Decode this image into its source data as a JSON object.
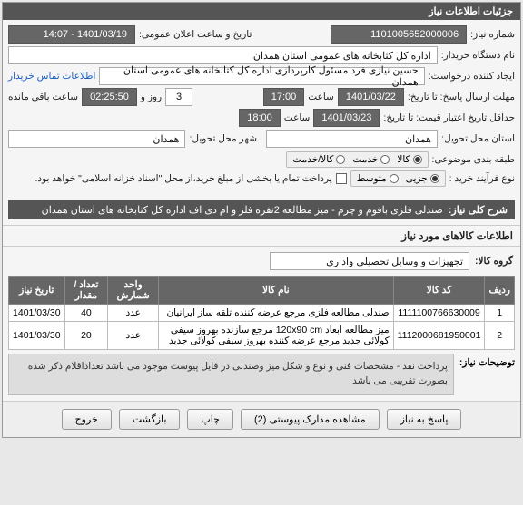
{
  "panel_title": "جزئیات اطلاعات نیاز",
  "labels": {
    "req_no": "شماره نیاز:",
    "announce_dt": "تاریخ و ساعت اعلان عمومی:",
    "buyer_org": "نام دستگاه خریدار:",
    "requester": "ایجاد کننده درخواست:",
    "contact_link": "اطلاعات تماس خریدار",
    "deadline": "مهلت ارسال پاسخ: تا تاریخ:",
    "time_lbl": "ساعت",
    "day_and": "روز و",
    "time_remain": "ساعت باقی مانده",
    "validity": "حداقل تاریخ اعتبار قیمت: تا تاریخ:",
    "province": "استان محل تحویل:",
    "city": "شهر محل تحویل:",
    "category": "طبقه بندی موضوعی:",
    "buy_process": "نوع فرآیند خرید :",
    "pay_note": "پرداخت تمام یا بخشی از مبلغ خرید،از محل \"اسناد خزانه اسلامی\" خواهد بود.",
    "desc_title": "شرح کلی نیاز:",
    "items_section": "اطلاعات کالاهای مورد نیاز",
    "goods_group": "گروه کالا:",
    "notes_lbl": "توضیحات نیاز:"
  },
  "values": {
    "req_no": "1101005652000006",
    "announce_dt": "1401/03/19 - 14:07",
    "buyer_org": "اداره کل کتابخانه های عمومی استان همدان",
    "requester": "حسین نیازی فرد مسئول کارپردازی اداره کل کتابخانه های عمومی استان همدان",
    "deadline_date": "1401/03/22",
    "deadline_time": "17:00",
    "days_left": "3",
    "countdown": "02:25:50",
    "validity_date": "1401/03/23",
    "validity_time": "18:00",
    "province": "همدان",
    "city": "همدان",
    "desc": "صندلی فلزی بافوم و چرم - میز مطالعه 2نفره فلز و ام دی اف اداره کل کتابخانه های استان همدان",
    "goods_group": "تجهیزات و وسایل تحصیلی واداری",
    "notes": "پرداخت نقد - مشخصات  فنی و نوع و شکل میز وصندلی در فایل پیوست موجود می باشد تعداداقلام ذکر شده بصورت تقریبی می باشد"
  },
  "category_options": {
    "goods": "کالا",
    "service": "خدمت",
    "both": "کالا/خدمت",
    "selected": "goods"
  },
  "process_options": {
    "low": "جزیی",
    "mid": "متوسط",
    "selected": "low"
  },
  "table": {
    "headers": [
      "ردیف",
      "کد کالا",
      "نام کالا",
      "واحد شمارش",
      "تعداد / مقدار",
      "تاریخ نیاز"
    ],
    "rows": [
      [
        "1",
        "1111100766630009",
        "صندلی مطالعه فلزی مرجع عرضه کننده تلقه ساز ایرانیان",
        "عدد",
        "40",
        "1401/03/30"
      ],
      [
        "2",
        "1112000681950001",
        "میز مطالعه ابعاد 120x90 cm مرجع سازنده بهروز سیفی کولائی جدید مرجع عرضه کننده بهروز سیفی کولائی جدید",
        "عدد",
        "20",
        "1401/03/30"
      ]
    ]
  },
  "buttons": {
    "respond": "پاسخ به نیاز",
    "view_docs": "مشاهده مدارک پیوستی (2)",
    "print": "چاپ",
    "back": "بازگشت",
    "exit": "خروج"
  }
}
